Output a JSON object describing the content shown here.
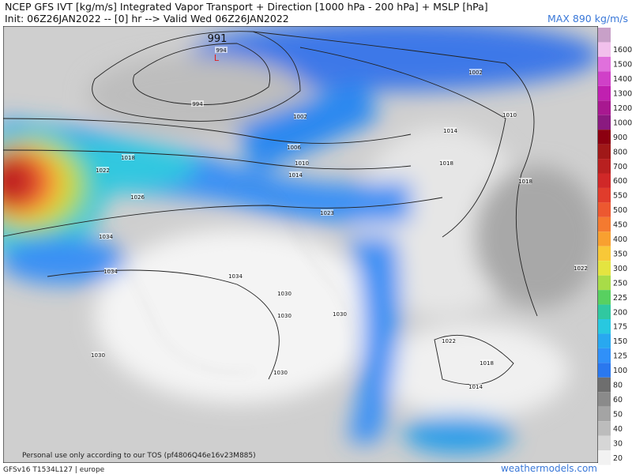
{
  "header": {
    "title": "NCEP GFS IVT [kg/m/s] Integrated Vapor Transport + Direction [1000 hPa - 200 hPa] + MSLP [hPa]",
    "init": "Init: 06Z26JAN2022 -- [0] hr --> Valid Wed 06Z26JAN2022",
    "max": "MAX 890 kg/m/s"
  },
  "map": {
    "low_value": "991",
    "low_marker": "L",
    "isobar_labels": [
      "994",
      "994",
      "1002",
      "1002",
      "1006",
      "1010",
      "1010",
      "1014",
      "1014",
      "1018",
      "1018",
      "1022",
      "1023",
      "1026",
      "1030",
      "1034",
      "1034",
      "1034",
      "1030",
      "1030",
      "1030",
      "1030",
      "1022",
      "1018",
      "1014",
      "1022",
      "1018"
    ],
    "notice": "Personal use only according to our TOS (pf4806Q46e16v23M885)"
  },
  "colorbar": {
    "labels": [
      "1600",
      "1500",
      "1400",
      "1300",
      "1200",
      "1000",
      "900",
      "800",
      "700",
      "600",
      "550",
      "500",
      "450",
      "400",
      "350",
      "300",
      "250",
      "225",
      "200",
      "175",
      "150",
      "125",
      "100",
      "80",
      "60",
      "50",
      "40",
      "30",
      "20"
    ],
    "colors": [
      "#f2c0ec",
      "#e070dc",
      "#d040c8",
      "#c020b0",
      "#a81890",
      "#8a1a80",
      "#8c0010",
      "#a01818",
      "#b82020",
      "#d02828",
      "#e03c2c",
      "#ec5830",
      "#f47a30",
      "#f8a030",
      "#f8c838",
      "#e4e440",
      "#a8dc48",
      "#58d060",
      "#30c8a0",
      "#28c8e0",
      "#28a8f0",
      "#3090f8",
      "#2a78ee",
      "#6e6e6e",
      "#8a8a8a",
      "#a4a4a4",
      "#bcbcbc",
      "#d6d6d6",
      "#f2f2f2"
    ],
    "top_color": "#c8a0c8"
  },
  "footer": {
    "model": "GFSv16 T1534L127 | europe",
    "site": "weathermodels.com"
  }
}
